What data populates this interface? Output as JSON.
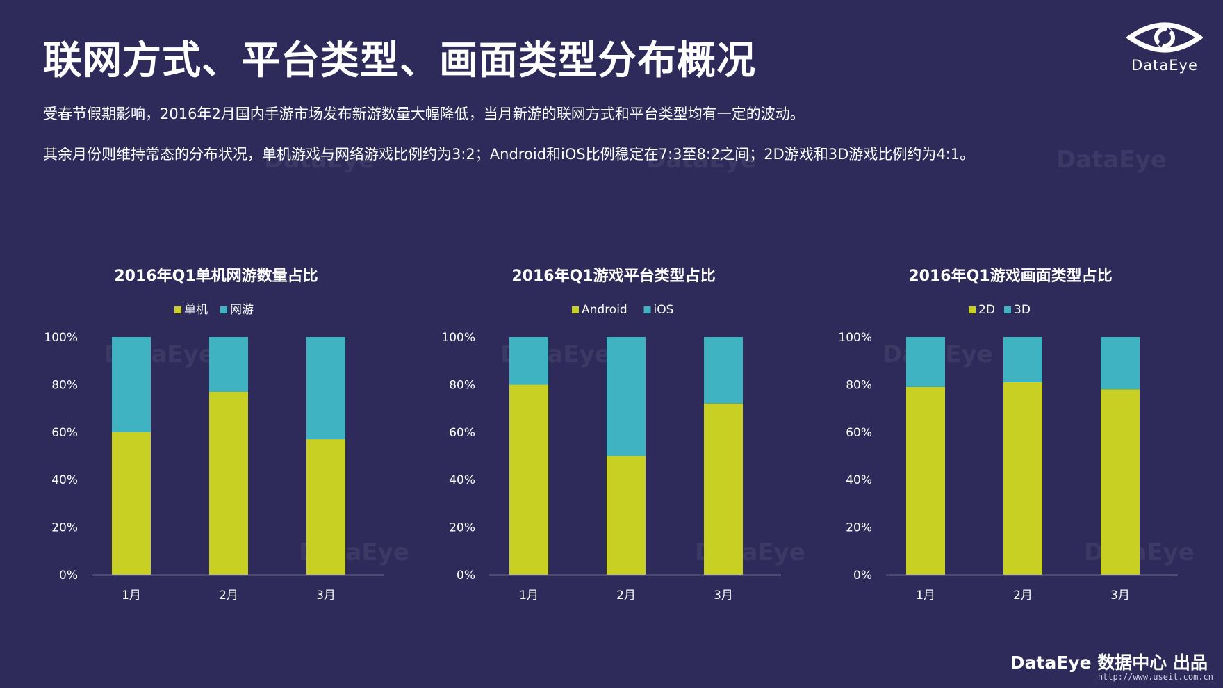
{
  "page": {
    "title": "联网方式、平台类型、画面类型分布概况",
    "desc1": "受春节假期影响，2016年2月国内手游市场发布新游数量大幅降低，当月新游的联网方式和平台类型均有一定的波动。",
    "desc2": "其余月份则维持常态的分布状况，单机游戏与网络游戏比例约为3:2；Android和iOS比例稳定在7:3至8:2之间；2D游戏和3D游戏比例约为4:1。",
    "logo_text": "DataEye",
    "footer": "DataEye 数据中心 出品",
    "watermark_url": "http://www.useit.com.cn"
  },
  "colors": {
    "primary": "#c9d024",
    "secondary": "#3fb3c2",
    "background": "#2e2a5a",
    "axis": "#9a97b8"
  },
  "chart_data": [
    {
      "type": "bar",
      "stacked": true,
      "title": "2016年Q1单机网游数量占比",
      "categories": [
        "1月",
        "2月",
        "3月"
      ],
      "series": [
        {
          "name": "单机",
          "values": [
            60,
            77,
            57
          ]
        },
        {
          "name": "网游",
          "values": [
            40,
            23,
            43
          ]
        }
      ],
      "y_ticks": [
        "0%",
        "20%",
        "40%",
        "60%",
        "80%",
        "100%"
      ],
      "ylim": [
        0,
        100
      ],
      "legend": "top"
    },
    {
      "type": "bar",
      "stacked": true,
      "title": "2016年Q1游戏平台类型占比",
      "categories": [
        "1月",
        "2月",
        "3月"
      ],
      "series": [
        {
          "name": "Android",
          "values": [
            80,
            50,
            72
          ]
        },
        {
          "name": "iOS",
          "values": [
            20,
            50,
            28
          ]
        }
      ],
      "y_ticks": [
        "0%",
        "20%",
        "40%",
        "60%",
        "80%",
        "100%"
      ],
      "ylim": [
        0,
        100
      ],
      "legend": "top"
    },
    {
      "type": "bar",
      "stacked": true,
      "title": "2016年Q1游戏画面类型占比",
      "categories": [
        "1月",
        "2月",
        "3月"
      ],
      "series": [
        {
          "name": "2D",
          "values": [
            79,
            81,
            78
          ]
        },
        {
          "name": "3D",
          "values": [
            21,
            19,
            22
          ]
        }
      ],
      "y_ticks": [
        "0%",
        "20%",
        "40%",
        "60%",
        "80%",
        "100%"
      ],
      "ylim": [
        0,
        100
      ],
      "legend": "top"
    }
  ]
}
